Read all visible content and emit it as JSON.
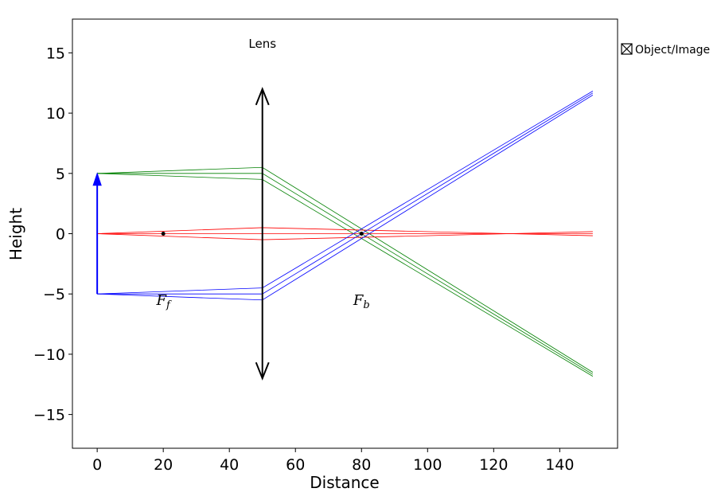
{
  "chart_data": {
    "type": "line",
    "title": "",
    "xlabel": "Distance",
    "ylabel": "Height",
    "xlim": [
      -7.5,
      157.5
    ],
    "ylim": [
      -17.8,
      17.8
    ],
    "x_ticks": [
      0,
      20,
      40,
      60,
      80,
      100,
      120,
      140
    ],
    "y_ticks": [
      15,
      10,
      5,
      0,
      -5,
      -10,
      -15
    ],
    "x_tick_labels": [
      "0",
      "20",
      "40",
      "60",
      "80",
      "100",
      "120",
      "140"
    ],
    "y_tick_labels": [
      "15",
      "10",
      "5",
      "0",
      "−5",
      "−10",
      "−15"
    ],
    "grid": false,
    "legend": {
      "placement": "outside-right-top",
      "entries": [
        {
          "label": "Object/Image"
        }
      ]
    },
    "lens": {
      "label": "Lens",
      "x": 50,
      "y_bottom": -12,
      "y_top": 12,
      "color": "#000000"
    },
    "object": {
      "x": 0,
      "y_base": -5,
      "y_tip": 5,
      "color": "#0000ff"
    },
    "focal_points": [
      {
        "name": "front-focal-point",
        "label": "F",
        "subscript": "f",
        "x": 20,
        "y": 0,
        "label_x": 20,
        "label_y": -5.5
      },
      {
        "name": "back-focal-point",
        "label": "F",
        "subscript": "b",
        "x": 80,
        "y": 0,
        "label_x": 80,
        "label_y": -5.5
      }
    ],
    "ray_groups": [
      {
        "name": "object-top-rays",
        "color": "#008000",
        "rays": [
          [
            [
              0,
              5
            ],
            [
              50,
              5.5
            ],
            [
              150,
              -11.5
            ]
          ],
          [
            [
              0,
              5
            ],
            [
              50,
              5
            ],
            [
              150,
              -11.67
            ]
          ],
          [
            [
              0,
              5
            ],
            [
              50,
              4.5
            ],
            [
              150,
              -11.83
            ]
          ]
        ]
      },
      {
        "name": "axis-rays",
        "color": "#ff0000",
        "rays": [
          [
            [
              0,
              0
            ],
            [
              50,
              0.5
            ],
            [
              150,
              -0.17
            ]
          ],
          [
            [
              0,
              0
            ],
            [
              50,
              0
            ],
            [
              150,
              0
            ]
          ],
          [
            [
              0,
              0
            ],
            [
              50,
              -0.5
            ],
            [
              150,
              0.17
            ]
          ]
        ]
      },
      {
        "name": "object-bottom-rays",
        "color": "#0000ff",
        "rays": [
          [
            [
              0,
              -5
            ],
            [
              50,
              -4.5
            ],
            [
              150,
              11.83
            ]
          ],
          [
            [
              0,
              -5
            ],
            [
              50,
              -5
            ],
            [
              150,
              11.67
            ]
          ],
          [
            [
              0,
              -5
            ],
            [
              50,
              -5.5
            ],
            [
              150,
              11.5
            ]
          ]
        ]
      }
    ]
  }
}
